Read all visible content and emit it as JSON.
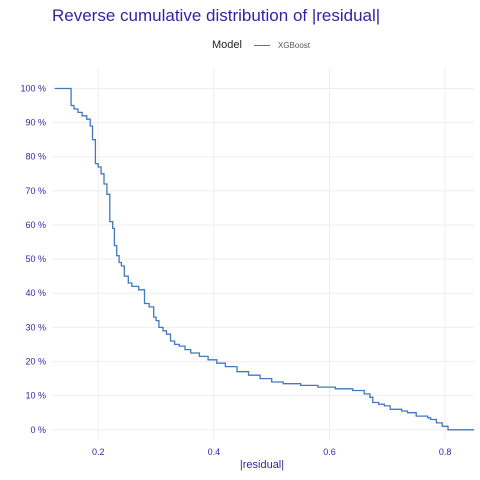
{
  "title": "Reverse cumulative distribution of |residual|",
  "legend": {
    "title": "Model",
    "entries": [
      {
        "label": "XGBoost",
        "color": "#4378bf"
      }
    ]
  },
  "colors": {
    "title": "#371ea3",
    "axis_text": "#371ea3",
    "grid": "#eeeeee",
    "line": "#4378bf"
  },
  "chart_data": {
    "type": "line",
    "step": true,
    "title": "Reverse cumulative distribution of |residual|",
    "xlabel": "|residual|",
    "ylabel": "",
    "xlim": [
      0.12,
      0.85
    ],
    "ylim": [
      -0.03,
      1.06
    ],
    "x_ticks": [
      0.2,
      0.4,
      0.6,
      0.8
    ],
    "x_tick_labels": [
      "0.2",
      "0.4",
      "0.6",
      "0.8"
    ],
    "y_ticks": [
      0,
      0.1,
      0.2,
      0.3,
      0.4,
      0.5,
      0.6,
      0.7,
      0.8,
      0.9,
      1.0
    ],
    "y_tick_labels": [
      "0 %",
      "10 %",
      "20 %",
      "30 %",
      "40 %",
      "50 %",
      "60 %",
      "70 %",
      "80 %",
      "90 %",
      "100 %"
    ],
    "grid": true,
    "legend_position": "top",
    "series": [
      {
        "name": "XGBoost",
        "color": "#4378bf",
        "x": [
          0.125,
          0.153,
          0.158,
          0.165,
          0.172,
          0.18,
          0.186,
          0.19,
          0.195,
          0.2,
          0.205,
          0.21,
          0.215,
          0.22,
          0.225,
          0.228,
          0.232,
          0.236,
          0.24,
          0.245,
          0.252,
          0.258,
          0.262,
          0.27,
          0.28,
          0.288,
          0.296,
          0.3,
          0.305,
          0.312,
          0.318,
          0.325,
          0.332,
          0.34,
          0.35,
          0.36,
          0.375,
          0.39,
          0.405,
          0.42,
          0.44,
          0.46,
          0.48,
          0.5,
          0.52,
          0.55,
          0.58,
          0.61,
          0.64,
          0.66,
          0.67,
          0.675,
          0.685,
          0.695,
          0.705,
          0.725,
          0.735,
          0.75,
          0.77,
          0.775,
          0.785,
          0.795,
          0.805,
          0.85
        ],
        "y": [
          1.0,
          0.95,
          0.94,
          0.93,
          0.92,
          0.91,
          0.89,
          0.85,
          0.78,
          0.77,
          0.75,
          0.72,
          0.69,
          0.61,
          0.59,
          0.54,
          0.51,
          0.49,
          0.48,
          0.45,
          0.43,
          0.42,
          0.42,
          0.41,
          0.37,
          0.36,
          0.33,
          0.32,
          0.3,
          0.29,
          0.28,
          0.26,
          0.25,
          0.245,
          0.235,
          0.225,
          0.215,
          0.205,
          0.195,
          0.185,
          0.17,
          0.16,
          0.15,
          0.14,
          0.135,
          0.13,
          0.125,
          0.12,
          0.115,
          0.105,
          0.095,
          0.08,
          0.075,
          0.07,
          0.06,
          0.055,
          0.05,
          0.04,
          0.035,
          0.03,
          0.02,
          0.01,
          0.0,
          0.0
        ]
      }
    ]
  }
}
